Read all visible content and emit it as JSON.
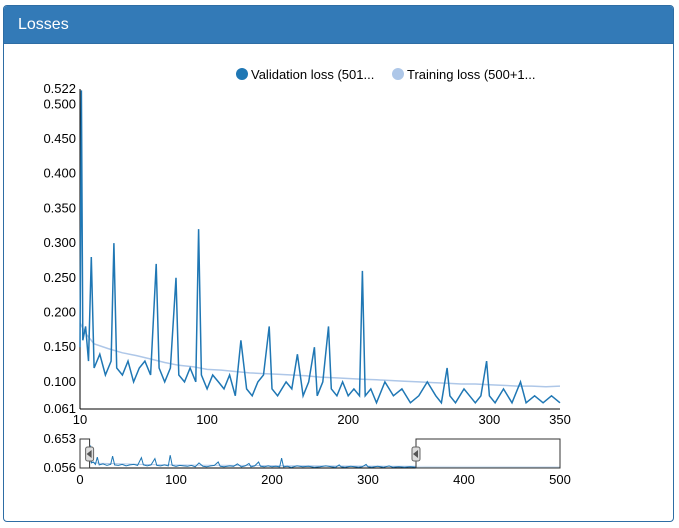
{
  "panel": {
    "title": "Losses"
  },
  "chart_data": {
    "type": "line",
    "title": "Losses",
    "series": [
      {
        "name": "Validation loss (501...",
        "color": "#1f77b4"
      },
      {
        "name": "Training loss (500+1...",
        "color": "#aec7e8"
      }
    ],
    "main": {
      "xlim": [
        10,
        350
      ],
      "ylim": [
        0.061,
        0.522
      ],
      "xticks": [
        "10",
        "100",
        "200",
        "300",
        "350"
      ],
      "xtick_values": [
        10,
        100,
        200,
        300,
        350
      ],
      "yticks": [
        "0.522",
        "0.500",
        "0.450",
        "0.400",
        "0.350",
        "0.300",
        "0.250",
        "0.200",
        "0.150",
        "0.100",
        "0.061"
      ],
      "ytick_values": [
        0.522,
        0.5,
        0.45,
        0.4,
        0.35,
        0.3,
        0.25,
        0.2,
        0.15,
        0.1,
        0.061
      ]
    },
    "overview": {
      "xlim": [
        0,
        500
      ],
      "ylim": [
        0.056,
        0.653
      ],
      "xticks": [
        "0",
        "100",
        "200",
        "300",
        "400",
        "500"
      ],
      "xtick_values": [
        0,
        100,
        200,
        300,
        400,
        500
      ],
      "yticks": [
        "0.653",
        "0.056"
      ],
      "ytick_values": [
        0.653,
        0.056
      ],
      "selection": [
        10,
        350
      ]
    },
    "validation_points": [
      [
        10,
        0.15
      ],
      [
        11,
        0.52
      ],
      [
        12,
        0.16
      ],
      [
        14,
        0.18
      ],
      [
        16,
        0.13
      ],
      [
        18,
        0.28
      ],
      [
        20,
        0.12
      ],
      [
        24,
        0.14
      ],
      [
        28,
        0.11
      ],
      [
        32,
        0.13
      ],
      [
        34,
        0.3
      ],
      [
        36,
        0.12
      ],
      [
        40,
        0.11
      ],
      [
        44,
        0.13
      ],
      [
        48,
        0.1
      ],
      [
        52,
        0.12
      ],
      [
        56,
        0.13
      ],
      [
        60,
        0.11
      ],
      [
        64,
        0.27
      ],
      [
        66,
        0.12
      ],
      [
        70,
        0.1
      ],
      [
        74,
        0.12
      ],
      [
        78,
        0.25
      ],
      [
        80,
        0.11
      ],
      [
        84,
        0.1
      ],
      [
        88,
        0.12
      ],
      [
        92,
        0.1
      ],
      [
        94,
        0.32
      ],
      [
        96,
        0.11
      ],
      [
        100,
        0.09
      ],
      [
        104,
        0.11
      ],
      [
        108,
        0.1
      ],
      [
        112,
        0.09
      ],
      [
        116,
        0.11
      ],
      [
        120,
        0.08
      ],
      [
        124,
        0.16
      ],
      [
        128,
        0.09
      ],
      [
        132,
        0.08
      ],
      [
        136,
        0.1
      ],
      [
        140,
        0.11
      ],
      [
        144,
        0.18
      ],
      [
        146,
        0.09
      ],
      [
        150,
        0.08
      ],
      [
        156,
        0.1
      ],
      [
        160,
        0.09
      ],
      [
        164,
        0.14
      ],
      [
        168,
        0.08
      ],
      [
        172,
        0.1
      ],
      [
        176,
        0.15
      ],
      [
        178,
        0.08
      ],
      [
        182,
        0.1
      ],
      [
        186,
        0.18
      ],
      [
        188,
        0.09
      ],
      [
        192,
        0.08
      ],
      [
        196,
        0.1
      ],
      [
        200,
        0.08
      ],
      [
        204,
        0.09
      ],
      [
        208,
        0.08
      ],
      [
        210,
        0.26
      ],
      [
        212,
        0.08
      ],
      [
        216,
        0.09
      ],
      [
        220,
        0.07
      ],
      [
        226,
        0.1
      ],
      [
        232,
        0.08
      ],
      [
        238,
        0.09
      ],
      [
        244,
        0.07
      ],
      [
        250,
        0.08
      ],
      [
        256,
        0.1
      ],
      [
        262,
        0.08
      ],
      [
        266,
        0.07
      ],
      [
        270,
        0.12
      ],
      [
        272,
        0.08
      ],
      [
        276,
        0.07
      ],
      [
        282,
        0.09
      ],
      [
        286,
        0.08
      ],
      [
        290,
        0.07
      ],
      [
        294,
        0.08
      ],
      [
        298,
        0.13
      ],
      [
        300,
        0.08
      ],
      [
        304,
        0.07
      ],
      [
        310,
        0.09
      ],
      [
        316,
        0.07
      ],
      [
        322,
        0.1
      ],
      [
        326,
        0.07
      ],
      [
        332,
        0.08
      ],
      [
        338,
        0.07
      ],
      [
        344,
        0.08
      ],
      [
        350,
        0.07
      ]
    ],
    "training_points": [
      [
        10,
        0.185
      ],
      [
        14,
        0.17
      ],
      [
        20,
        0.155
      ],
      [
        30,
        0.148
      ],
      [
        40,
        0.142
      ],
      [
        50,
        0.138
      ],
      [
        60,
        0.133
      ],
      [
        70,
        0.128
      ],
      [
        80,
        0.124
      ],
      [
        90,
        0.122
      ],
      [
        100,
        0.118
      ],
      [
        110,
        0.117
      ],
      [
        120,
        0.115
      ],
      [
        130,
        0.113
      ],
      [
        140,
        0.112
      ],
      [
        150,
        0.111
      ],
      [
        160,
        0.11
      ],
      [
        170,
        0.109
      ],
      [
        180,
        0.107
      ],
      [
        190,
        0.106
      ],
      [
        200,
        0.105
      ],
      [
        210,
        0.104
      ],
      [
        220,
        0.103
      ],
      [
        230,
        0.102
      ],
      [
        240,
        0.101
      ],
      [
        250,
        0.1
      ],
      [
        260,
        0.099
      ],
      [
        270,
        0.098
      ],
      [
        280,
        0.097
      ],
      [
        290,
        0.097
      ],
      [
        300,
        0.096
      ],
      [
        310,
        0.095
      ],
      [
        320,
        0.094
      ],
      [
        330,
        0.094
      ],
      [
        340,
        0.093
      ],
      [
        350,
        0.094
      ]
    ]
  }
}
